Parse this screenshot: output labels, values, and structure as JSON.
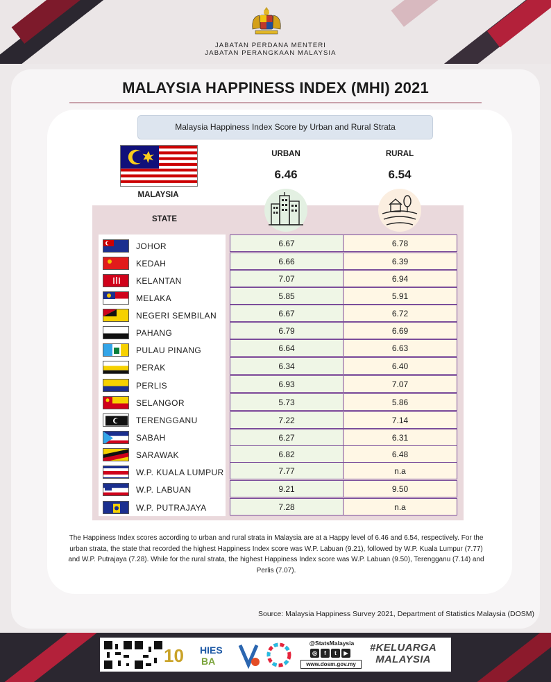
{
  "header": {
    "dept_line1": "JABATAN PERDANA MENTERI",
    "dept_line2": "JABATAN PERANGKAAN MALAYSIA"
  },
  "title": "MALAYSIA HAPPINESS INDEX (MHI) 2021",
  "subtitle": "Malaysia Happiness Index Score by Urban and Rural Strata",
  "national": {
    "label": "MALAYSIA",
    "urban_label": "URBAN",
    "rural_label": "RURAL",
    "urban_value": "6.46",
    "rural_value": "6.54"
  },
  "state_header": "STATE",
  "chart_data": {
    "type": "table",
    "title": "Malaysia Happiness Index Score by Urban and Rural Strata",
    "columns": [
      "STATE",
      "URBAN",
      "RURAL"
    ],
    "rows": [
      {
        "state": "JOHOR",
        "urban": "6.67",
        "rural": "6.78"
      },
      {
        "state": "KEDAH",
        "urban": "6.66",
        "rural": "6.39"
      },
      {
        "state": "KELANTAN",
        "urban": "7.07",
        "rural": "6.94"
      },
      {
        "state": "MELAKA",
        "urban": "5.85",
        "rural": "5.91"
      },
      {
        "state": "NEGERI SEMBILAN",
        "urban": "6.67",
        "rural": "6.72"
      },
      {
        "state": "PAHANG",
        "urban": "6.79",
        "rural": "6.69"
      },
      {
        "state": "PULAU PINANG",
        "urban": "6.64",
        "rural": "6.63"
      },
      {
        "state": "PERAK",
        "urban": "6.34",
        "rural": "6.40"
      },
      {
        "state": "PERLIS",
        "urban": "6.93",
        "rural": "7.07"
      },
      {
        "state": "SELANGOR",
        "urban": "5.73",
        "rural": "5.86"
      },
      {
        "state": "TERENGGANU",
        "urban": "7.22",
        "rural": "7.14"
      },
      {
        "state": "SABAH",
        "urban": "6.27",
        "rural": "6.31"
      },
      {
        "state": "SARAWAK",
        "urban": "6.82",
        "rural": "6.48"
      },
      {
        "state": "W.P. KUALA LUMPUR",
        "urban": "7.77",
        "rural": "n.a"
      },
      {
        "state": "W.P. LABUAN",
        "urban": "9.21",
        "rural": "9.50"
      },
      {
        "state": "W.P. PUTRAJAYA",
        "urban": "7.28",
        "rural": "n.a"
      }
    ]
  },
  "description": "The Happiness Index scores according to urban and rural strata in Malaysia are at a Happy level of 6.46 and 6.54, respectively. For the urban strata, the state that recorded the highest Happiness Index score was W.P. Labuan (9.21), followed by W.P. Kuala Lumpur (7.77) and W.P. Putrajaya (7.28). While for the rural strata, the highest Happiness Index score was W.P. Labuan (9.50), Terengganu  (7.14) and Perlis (7.07).",
  "source": "Source:  Malaysia Happiness Survey 2021, Department of Statistics Malaysia (DOSM)",
  "footer": {
    "handle": "@StatsMalaysia",
    "url": "www.dosm.gov.my",
    "keluarga_line1": "#KELUARGA",
    "keluarga_line2": "MALAYSIA",
    "social_icons": [
      "instagram-icon",
      "facebook-icon",
      "twitter-icon",
      "youtube-icon"
    ]
  },
  "colors": {
    "accent": "#7b4d9a",
    "urban_fill": "#eff6e6",
    "rural_fill": "#fff7e5",
    "table_bg": "#ead9dc",
    "subtitle_bg": "#dde5ef"
  }
}
